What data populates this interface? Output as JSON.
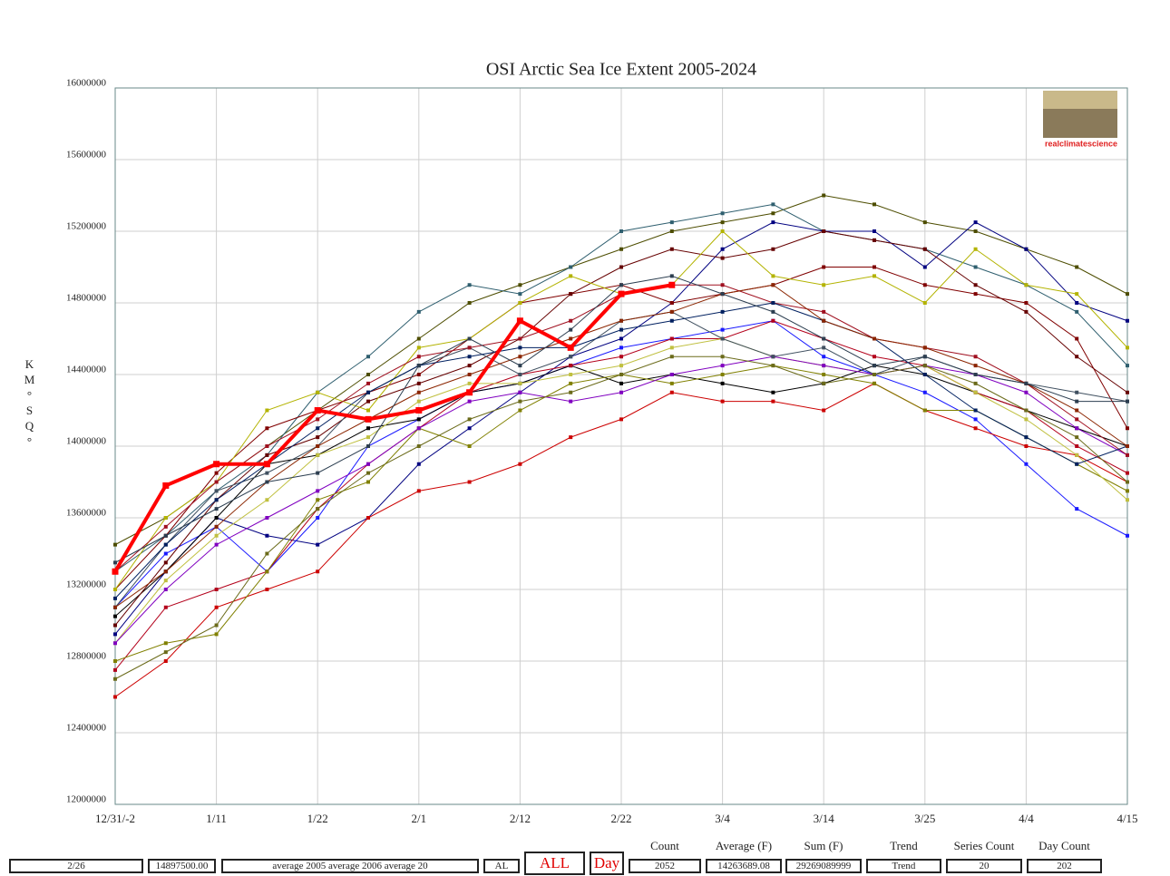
{
  "chart_data": {
    "type": "line",
    "title": "OSI Arctic Sea Ice Extent 2005-2024",
    "y_label": "KM°SQ°",
    "xlim": [
      0,
      100
    ],
    "xticks": [
      {
        "value": 0,
        "label": "12/31/-2"
      },
      {
        "value": 10,
        "label": "1/11"
      },
      {
        "value": 20,
        "label": "1/22"
      },
      {
        "value": 30,
        "label": "2/1"
      },
      {
        "value": 40,
        "label": "2/12"
      },
      {
        "value": 50,
        "label": "2/22"
      },
      {
        "value": 60,
        "label": "3/4"
      },
      {
        "value": 70,
        "label": "3/14"
      },
      {
        "value": 80,
        "label": "3/25"
      },
      {
        "value": 90,
        "label": "4/4"
      },
      {
        "value": 100,
        "label": "4/15"
      }
    ],
    "ylim": [
      12000000,
      16000000
    ],
    "yticks": [
      12000000,
      12400000,
      12800000,
      13200000,
      13600000,
      14000000,
      14400000,
      14800000,
      15200000,
      15600000,
      16000000
    ],
    "grid": true,
    "x": [
      0,
      5,
      10,
      15,
      20,
      25,
      30,
      35,
      40,
      45,
      50,
      55,
      60,
      65,
      70,
      75,
      80,
      85,
      90,
      95,
      100
    ],
    "series": [
      {
        "color": "#4d4d00",
        "values": [
          13450000,
          13600000,
          13800000,
          14000000,
          14200000,
          14400000,
          14600000,
          14800000,
          14900000,
          15000000,
          15100000,
          15200000,
          15250000,
          15300000,
          15400000,
          15350000,
          15250000,
          15200000,
          15100000,
          15000000,
          14850000
        ]
      },
      {
        "color": "#2f5f6f",
        "values": [
          13300000,
          13500000,
          13750000,
          13950000,
          14300000,
          14500000,
          14750000,
          14900000,
          14850000,
          15000000,
          15200000,
          15250000,
          15300000,
          15350000,
          15200000,
          15150000,
          15100000,
          15000000,
          14900000,
          14750000,
          14450000
        ]
      },
      {
        "color": "#000080",
        "values": [
          12950000,
          13300000,
          13600000,
          13500000,
          13450000,
          13600000,
          13900000,
          14100000,
          14300000,
          14500000,
          14600000,
          14800000,
          15100000,
          15250000,
          15200000,
          15200000,
          15000000,
          15250000,
          15100000,
          14800000,
          14700000
        ]
      },
      {
        "color": "#1a1aff",
        "values": [
          13100000,
          13400000,
          13550000,
          13300000,
          13600000,
          14000000,
          14150000,
          14300000,
          14350000,
          14450000,
          14550000,
          14600000,
          14650000,
          14700000,
          14500000,
          14400000,
          14300000,
          14150000,
          13900000,
          13650000,
          13500000
        ]
      },
      {
        "color": "#000000",
        "values": [
          13050000,
          13300000,
          13600000,
          13900000,
          13950000,
          14100000,
          14150000,
          14300000,
          14350000,
          14450000,
          14350000,
          14400000,
          14350000,
          14300000,
          14350000,
          14450000,
          14400000,
          14300000,
          14200000,
          14100000,
          14000000
        ]
      },
      {
        "color": "#800000",
        "values": [
          13200000,
          13500000,
          13850000,
          14100000,
          14200000,
          14300000,
          14400000,
          14600000,
          14800000,
          14850000,
          14900000,
          14800000,
          14850000,
          14900000,
          15000000,
          15000000,
          14900000,
          14850000,
          14800000,
          14600000,
          14100000
        ]
      },
      {
        "color": "#660000",
        "values": [
          13000000,
          13350000,
          13700000,
          13950000,
          14050000,
          14250000,
          14350000,
          14450000,
          14600000,
          14850000,
          15000000,
          15100000,
          15050000,
          15100000,
          15200000,
          15150000,
          15100000,
          14900000,
          14750000,
          14500000,
          14300000
        ]
      },
      {
        "color": "#cc0000",
        "values": [
          12600000,
          12800000,
          13100000,
          13200000,
          13300000,
          13600000,
          13750000,
          13800000,
          13900000,
          14050000,
          14150000,
          14300000,
          14250000,
          14250000,
          14200000,
          14350000,
          14200000,
          14100000,
          14000000,
          13950000,
          13800000
        ]
      },
      {
        "color": "#b3001b",
        "values": [
          12750000,
          13100000,
          13200000,
          13300000,
          13650000,
          13900000,
          14100000,
          14300000,
          14400000,
          14450000,
          14500000,
          14600000,
          14600000,
          14700000,
          14600000,
          14500000,
          14450000,
          14300000,
          14200000,
          14000000,
          13850000
        ]
      },
      {
        "color": "#808000",
        "values": [
          12800000,
          12900000,
          12950000,
          13300000,
          13700000,
          13800000,
          14100000,
          14000000,
          14200000,
          14350000,
          14400000,
          14350000,
          14400000,
          14450000,
          14400000,
          14350000,
          14200000,
          14200000,
          14050000,
          13900000,
          13750000
        ]
      },
      {
        "color": "#b3b300",
        "values": [
          13200000,
          13600000,
          13800000,
          14200000,
          14300000,
          14200000,
          14550000,
          14600000,
          14800000,
          14950000,
          14850000,
          14900000,
          15200000,
          14950000,
          14900000,
          14950000,
          14800000,
          15100000,
          14900000,
          14850000,
          14550000
        ]
      },
      {
        "color": "#c0c040",
        "values": [
          12900000,
          13250000,
          13500000,
          13700000,
          13950000,
          14050000,
          14250000,
          14350000,
          14350000,
          14400000,
          14450000,
          14550000,
          14600000,
          14500000,
          14450000,
          14400000,
          14450000,
          14300000,
          14150000,
          13950000,
          13700000
        ]
      },
      {
        "color": "#8000c0",
        "values": [
          12900000,
          13200000,
          13450000,
          13600000,
          13750000,
          13900000,
          14100000,
          14250000,
          14300000,
          14250000,
          14300000,
          14400000,
          14450000,
          14500000,
          14450000,
          14400000,
          14450000,
          14400000,
          14300000,
          14100000,
          13950000
        ]
      },
      {
        "color": "#405060",
        "values": [
          13100000,
          13450000,
          13750000,
          13850000,
          14000000,
          14300000,
          14450000,
          14550000,
          14400000,
          14500000,
          14700000,
          14750000,
          14600000,
          14500000,
          14550000,
          14400000,
          14500000,
          14400000,
          14350000,
          14300000,
          14250000
        ]
      },
      {
        "color": "#a01020",
        "values": [
          13300000,
          13550000,
          13800000,
          14000000,
          14150000,
          14350000,
          14500000,
          14550000,
          14600000,
          14700000,
          14850000,
          14900000,
          14900000,
          14800000,
          14750000,
          14600000,
          14550000,
          14500000,
          14350000,
          14150000,
          13950000
        ]
      },
      {
        "color": "#002060",
        "values": [
          13150000,
          13450000,
          13700000,
          13900000,
          14100000,
          14300000,
          14450000,
          14500000,
          14550000,
          14550000,
          14650000,
          14700000,
          14750000,
          14800000,
          14700000,
          14600000,
          14400000,
          14200000,
          14050000,
          13900000,
          14000000
        ]
      },
      {
        "color": "#8b2500",
        "values": [
          13100000,
          13300000,
          13550000,
          13800000,
          14000000,
          14150000,
          14300000,
          14400000,
          14500000,
          14600000,
          14700000,
          14750000,
          14850000,
          14900000,
          14700000,
          14600000,
          14550000,
          14450000,
          14350000,
          14200000,
          14000000
        ]
      },
      {
        "color": "#6b6b1a",
        "values": [
          12700000,
          12850000,
          13000000,
          13400000,
          13650000,
          13850000,
          14000000,
          14150000,
          14250000,
          14300000,
          14400000,
          14500000,
          14500000,
          14450000,
          14350000,
          14400000,
          14450000,
          14350000,
          14200000,
          14050000,
          13800000
        ]
      },
      {
        "color": "#2c3e50",
        "values": [
          13350000,
          13500000,
          13650000,
          13800000,
          13850000,
          14000000,
          14450000,
          14600000,
          14450000,
          14650000,
          14900000,
          14950000,
          14850000,
          14750000,
          14600000,
          14450000,
          14500000,
          14400000,
          14350000,
          14250000,
          14250000
        ]
      },
      {
        "color": "#ff0000",
        "values": [
          13300000,
          13780000,
          13900000,
          13900000,
          14200000,
          14150000,
          14200000,
          14300000,
          14700000,
          14550000,
          14850000,
          14900000,
          null,
          null,
          null,
          null,
          null,
          null,
          null,
          null,
          null
        ]
      }
    ]
  },
  "logo": {
    "label": "realclimatescience"
  },
  "controls": {
    "inputs": [
      "2/26",
      "14897500.00",
      "average 2005 average 2006 average 20",
      "AL"
    ],
    "buttons": [
      "ALL",
      "Day"
    ],
    "stats": [
      {
        "label": "Count",
        "value": "2052"
      },
      {
        "label": "Average (F)",
        "value": "14263689.08"
      },
      {
        "label": "Sum (F)",
        "value": "29269089999"
      },
      {
        "label": "Trend",
        "value": "Trend"
      },
      {
        "label": "Series Count",
        "value": "20"
      },
      {
        "label": "Day Count",
        "value": "202"
      }
    ]
  }
}
